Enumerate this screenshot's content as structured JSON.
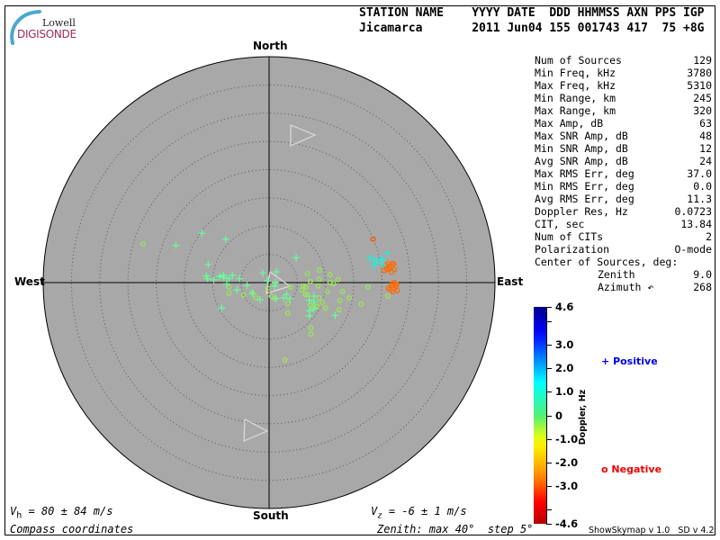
{
  "logo": {
    "line1": "Lowell",
    "line2": "DIGISONDE"
  },
  "header": {
    "columns": "STATION NAME    YYYY DATE  DDD HHMMSS AXN PPS IGP",
    "values": "Jicamarca       2011 Jun04 155 001743 417  75 +8G"
  },
  "stats": [
    {
      "label": "Num of Sources",
      "value": "129"
    },
    {
      "label": "Min Freq, kHz",
      "value": "3780"
    },
    {
      "label": "Max Freq, kHz",
      "value": "5310"
    },
    {
      "label": "Min Range, km",
      "value": "245"
    },
    {
      "label": "Max Range, km",
      "value": "320"
    },
    {
      "label": "Max Amp, dB",
      "value": "63"
    },
    {
      "label": "Max SNR Amp, dB",
      "value": "48"
    },
    {
      "label": "Min SNR Amp, dB",
      "value": "12"
    },
    {
      "label": "Avg SNR Amp, dB",
      "value": "24"
    },
    {
      "label": "Max RMS Err, deg",
      "value": "37.0"
    },
    {
      "label": "Min RMS Err, deg",
      "value": "0.0"
    },
    {
      "label": "Avg RMS Err, deg",
      "value": "11.3"
    },
    {
      "label": "Doppler Res, Hz",
      "value": "0.0723"
    },
    {
      "label": "CIT, sec",
      "value": "13.84"
    },
    {
      "label": "Num of CITs",
      "value": "2"
    },
    {
      "label": "Polarization",
      "value": "O-mode"
    },
    {
      "label": "Center of Sources, deg:",
      "value": ""
    },
    {
      "label": "Zenith",
      "value": "9.0",
      "indent": true
    },
    {
      "label": "Azimuth ↶",
      "value": "268",
      "indent": true
    }
  ],
  "compass": {
    "north": "North",
    "south": "South",
    "east": "East",
    "west": "West"
  },
  "footer": {
    "vh": "= 80 ± 84 m/s",
    "vz": "= -6 ± 1 m/s",
    "vh_symbol": "V",
    "vh_sub": "h",
    "vz_symbol": "V",
    "vz_sub": "z",
    "coords": "Compass coordinates",
    "zenith": "Zenith: max 40°  step 5°",
    "version": "ShowSkymap v 1.0   SD v 4.2"
  },
  "legend": {
    "positive": "Positive",
    "positive_symbol": "+",
    "positive_color": "#0000ee",
    "negative": "Negative",
    "negative_symbol": "o",
    "negative_color": "#ee0000"
  },
  "chart_data": {
    "type": "scatter",
    "projection": "polar sky map, zenith angle radial, compass azimuth",
    "zenith_max_deg": 40,
    "zenith_step_deg": 5,
    "x_axis": "East(+)/West(-) zenith offset, deg",
    "y_axis": "North(+)/South(-) zenith offset, deg",
    "background": "#a8a8a8",
    "colorbar": {
      "label": "Doppler, Hz",
      "range": [
        -4.6,
        4.6
      ],
      "ticks": [
        "4.6",
        "3.0",
        "2.0",
        "1.0",
        "0",
        "-1.0",
        "-2.0",
        "-3.0",
        "-4.6"
      ],
      "tick_values": [
        4.6,
        3.0,
        2.0,
        1.0,
        0,
        -1.0,
        -2.0,
        -3.0,
        -4.6
      ],
      "colormap": "jet"
    },
    "point_fields": [
      "east_deg",
      "north_deg",
      "doppler_hz"
    ],
    "positive_points": [
      [
        -11.9,
        8.7,
        0.6
      ],
      [
        -16.5,
        6.6,
        0.6
      ],
      [
        -7.7,
        7.7,
        0.6
      ],
      [
        -10.8,
        3.2,
        0.6
      ],
      [
        -11.1,
        1.2,
        0.6
      ],
      [
        -10.9,
        0.7,
        0.6
      ],
      [
        -9.8,
        0.5,
        0.6
      ],
      [
        -8.8,
        1.1,
        0.6
      ],
      [
        -8.1,
        1.3,
        0.6
      ],
      [
        -8.0,
        0.9,
        0.6
      ],
      [
        -7.1,
        0.7,
        0.6
      ],
      [
        -6.5,
        1.3,
        0.6
      ],
      [
        -5.2,
        0.7,
        0.6
      ],
      [
        -7.5,
        -0.2,
        0.6
      ],
      [
        -5.7,
        -1.3,
        0.6
      ],
      [
        -3.9,
        -0.5,
        0.6
      ],
      [
        -2.9,
        -1.9,
        0.6
      ],
      [
        -1.6,
        -3.0,
        0.6
      ],
      [
        -1.1,
        1.7,
        0.6
      ],
      [
        1.3,
        1.9,
        0.6
      ],
      [
        -0.3,
        0.3,
        0.6
      ],
      [
        1.1,
        0.0,
        0.6
      ],
      [
        1.0,
        -0.6,
        0.6
      ],
      [
        2.6,
        -2.7,
        0.6
      ],
      [
        3.1,
        -2.1,
        0.6
      ],
      [
        3.7,
        -2.9,
        0.6
      ],
      [
        4.8,
        4.4,
        0.6
      ],
      [
        -8.4,
        -4.5,
        0.6
      ],
      [
        7.1,
        -3.1,
        0.6
      ],
      [
        7.9,
        -2.4,
        0.6
      ],
      [
        8.0,
        -3.4,
        0.6
      ],
      [
        7.2,
        -5.0,
        0.6
      ],
      [
        7.9,
        -4.7,
        0.6
      ],
      [
        7.1,
        -5.9,
        0.6
      ],
      [
        11.7,
        -5.8,
        0.6
      ],
      [
        1.2,
        -2.8,
        0.6
      ],
      [
        17.8,
        4.4,
        1.3
      ],
      [
        18.6,
        4.0,
        1.3
      ],
      [
        19.0,
        3.5,
        1.3
      ],
      [
        19.7,
        4.2,
        1.3
      ],
      [
        20.1,
        4.0,
        1.3
      ],
      [
        20.9,
        5.2,
        1.3
      ],
      [
        18.5,
        3.0,
        1.3
      ],
      [
        20.1,
        3.2,
        1.3
      ]
    ],
    "negative_points": [
      [
        -22.3,
        6.8,
        -0.5
      ],
      [
        -7.1,
        -0.8,
        -0.5
      ],
      [
        -7.1,
        -1.9,
        -0.5
      ],
      [
        -4.5,
        -2.2,
        -0.5
      ],
      [
        -3.0,
        -1.8,
        -0.5
      ],
      [
        -2.3,
        -2.7,
        -0.5
      ],
      [
        0.4,
        -2.4,
        -0.5
      ],
      [
        1.0,
        -2.8,
        -0.5
      ],
      [
        -0.2,
        -1.0,
        -0.5
      ],
      [
        3.8,
        -0.8,
        -0.5
      ],
      [
        6.8,
        1.6,
        -0.5
      ],
      [
        8.9,
        2.2,
        -0.5
      ],
      [
        10.8,
        1.4,
        -0.5
      ],
      [
        12.2,
        0.5,
        -0.5
      ],
      [
        7.3,
        0.2,
        -0.5
      ],
      [
        8.9,
        0.6,
        -0.5
      ],
      [
        10.8,
        0.0,
        -0.5
      ],
      [
        11.4,
        -0.2,
        -0.5
      ],
      [
        8.7,
        -0.6,
        -0.5
      ],
      [
        6.1,
        -0.6,
        -0.5
      ],
      [
        6.5,
        -0.8,
        -0.5
      ],
      [
        5.8,
        -1.3,
        -0.5
      ],
      [
        6.4,
        -2.1,
        -0.5
      ],
      [
        6.8,
        -2.1,
        -0.5
      ],
      [
        8.8,
        -2.7,
        -0.5
      ],
      [
        10.3,
        -1.6,
        -0.5
      ],
      [
        13.0,
        -1.6,
        -0.5
      ],
      [
        12.5,
        -3.2,
        -0.5
      ],
      [
        14.2,
        -2.7,
        -0.5
      ],
      [
        9.4,
        -3.5,
        -0.5
      ],
      [
        7.3,
        -4.0,
        -0.5
      ],
      [
        7.9,
        -4.1,
        -0.5
      ],
      [
        8.5,
        -4.2,
        -0.5
      ],
      [
        10.0,
        -4.5,
        -0.5
      ],
      [
        12.4,
        -4.8,
        -0.5
      ],
      [
        16.3,
        -3.8,
        -0.5
      ],
      [
        17.5,
        -0.8,
        -0.5
      ],
      [
        21.0,
        -2.4,
        -0.5
      ],
      [
        3.3,
        -3.7,
        -0.5
      ],
      [
        3.3,
        -5.4,
        -0.5
      ],
      [
        7.4,
        -8.0,
        -0.5
      ],
      [
        7.4,
        -9.1,
        -0.5
      ],
      [
        2.8,
        -13.7,
        -0.5
      ],
      [
        18.4,
        7.7,
        -3.3
      ],
      [
        20.6,
        3.0,
        -3.0
      ],
      [
        21.0,
        3.3,
        -3.0
      ],
      [
        21.4,
        2.9,
        -3.0
      ],
      [
        21.8,
        3.4,
        -3.0
      ],
      [
        22.2,
        2.3,
        -3.0
      ],
      [
        20.9,
        2.3,
        -3.0
      ],
      [
        21.7,
        1.8,
        -3.0
      ],
      [
        20.4,
        2.1,
        -3.0
      ],
      [
        21.3,
        2.5,
        -3.0
      ],
      [
        22.1,
        3.3,
        -3.0
      ],
      [
        21.1,
        -1.0,
        -3.0
      ],
      [
        21.7,
        -0.5,
        -3.0
      ],
      [
        22.2,
        0.0,
        -3.0
      ],
      [
        22.5,
        -0.7,
        -3.0
      ],
      [
        22.7,
        -1.4,
        -3.0
      ],
      [
        21.9,
        -1.6,
        -3.0
      ],
      [
        21.4,
        -1.2,
        -3.0
      ],
      [
        22.1,
        -1.1,
        -3.0
      ],
      [
        22.6,
        -0.3,
        -3.0
      ],
      [
        21.8,
        -0.2,
        -3.0
      ]
    ]
  }
}
